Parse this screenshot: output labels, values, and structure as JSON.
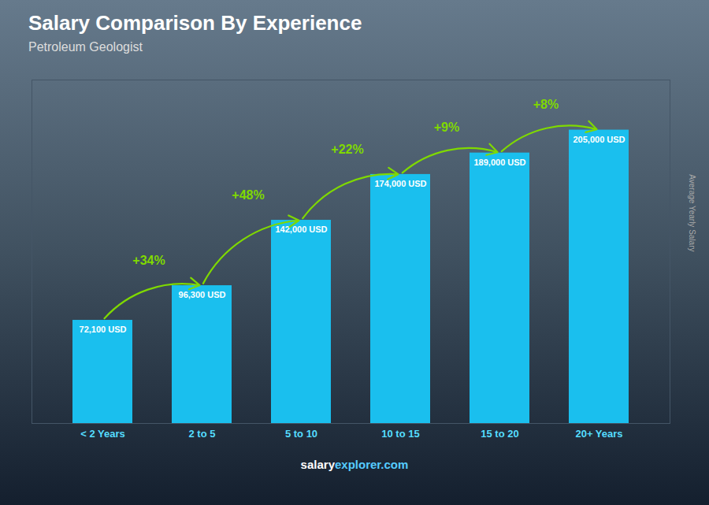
{
  "chart_data": {
    "type": "bar",
    "title": "Salary Comparison By Experience",
    "subtitle": "Petroleum Geologist",
    "ylabel": "Average Yearly Salary",
    "footer": [
      "salary",
      "explorer.com"
    ],
    "categories": [
      "< 2 Years",
      "2 to 5",
      "5 to 10",
      "10 to 15",
      "15 to 20",
      "20+ Years"
    ],
    "values": [
      72100,
      96300,
      142000,
      174000,
      189000,
      205000
    ],
    "value_labels": [
      "72,100 USD",
      "96,300 USD",
      "142,000 USD",
      "174,000 USD",
      "189,000 USD",
      "205,000 USD"
    ],
    "data_labels": true,
    "color": "#1ABFEE",
    "ylim": [
      0,
      240000
    ],
    "tick_labels": "x",
    "grid": false,
    "annotations": [
      {
        "text": "+34%",
        "from": "< 2 Years",
        "to": "2 to 5",
        "color": "#7FD900"
      },
      {
        "text": "+48%",
        "from": "2 to 5",
        "to": "5 to 10",
        "color": "#7FD900"
      },
      {
        "text": "+22%",
        "from": "5 to 10",
        "to": "10 to 15",
        "color": "#7FD900"
      },
      {
        "text": "+9%",
        "from": "10 to 15",
        "to": "15 to 20",
        "color": "#7FD900"
      },
      {
        "text": "+8%",
        "from": "15 to 20",
        "to": "20+ Years",
        "color": "#7FD900"
      }
    ]
  }
}
